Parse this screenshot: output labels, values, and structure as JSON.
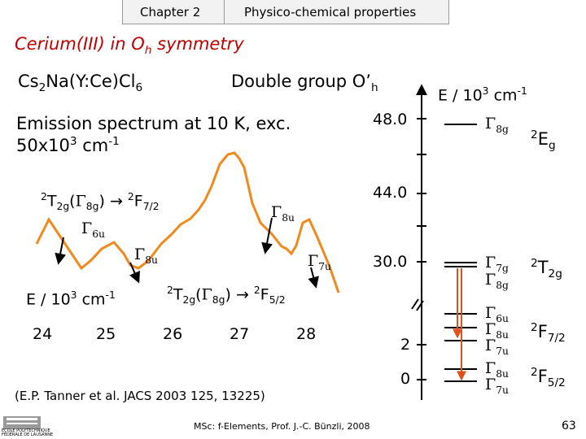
{
  "header": {
    "chapter": "Chapter 2",
    "topic": "Physico-chemical properties"
  },
  "title": {
    "prefix": "Cerium(III) in O",
    "sub": "h",
    "suffix": " symmetry"
  },
  "compound": {
    "a": "Cs",
    "a_sub": "2",
    "b": "Na(Y:Ce)Cl",
    "b_sub": "6"
  },
  "double_group": "Double group O’",
  "double_group_sub": "h",
  "emission_line1": "Emission spectrum at 10 K, exc.",
  "emission_line2_a": "50x10",
  "emission_line2_sup": "3",
  "emission_line2_b": " cm",
  "emission_line2_sup2": "-1",
  "spectrum": {
    "line_color": "#f08a1e",
    "transition_upper": {
      "t": "T",
      "t_sub": "2g",
      "gamma": "Γ",
      "gamma_sub": "8g",
      "arrow": "→",
      "f": "F",
      "f_sub": "7/2",
      "sup2": "2"
    },
    "transition_lower": {
      "t": "T",
      "t_sub": "2g",
      "gamma": "Γ",
      "gamma_sub": "8g",
      "arrow": "→",
      "f": "F",
      "f_sub": "5/2",
      "sup2": "2"
    },
    "peak_labels": [
      {
        "gamma": "Γ",
        "sub": "6u"
      },
      {
        "gamma": "Γ",
        "sub": "8u"
      },
      {
        "gamma": "Γ",
        "sub": "8u"
      },
      {
        "gamma": "Γ",
        "sub": "7u"
      }
    ],
    "x_axis_label": "E / 10",
    "x_axis_sup": "3",
    "x_axis_unit": " cm",
    "x_axis_unit_sup": "-1",
    "x_ticks": [
      "24",
      "25",
      "26",
      "27",
      "28"
    ]
  },
  "energy_diagram": {
    "axis_label": "E / 10",
    "axis_sup": "3",
    "axis_unit": " cm",
    "axis_unit_sup": "-1",
    "ticks": [
      "48.0",
      "44.0",
      "30.0",
      "2",
      "0"
    ],
    "arrow_color": "#e0501c",
    "levels": [
      {
        "gamma": "Γ",
        "sub": "8g"
      },
      {
        "gamma": "Γ",
        "sub": "7g"
      },
      {
        "gamma": "Γ",
        "sub": "8g"
      },
      {
        "gamma": "Γ",
        "sub": "6u"
      },
      {
        "gamma": "Γ",
        "sub": "8u"
      },
      {
        "gamma": "Γ",
        "sub": "7u"
      },
      {
        "gamma": "Γ",
        "sub": "8u"
      },
      {
        "gamma": "Γ",
        "sub": "7u"
      }
    ],
    "terms": [
      {
        "sup": "2",
        "main": "E",
        "sub": "g"
      },
      {
        "sup": "2",
        "main": "T",
        "sub": "2g"
      },
      {
        "sup": "2",
        "main": "F",
        "sub": "7/2"
      },
      {
        "sup": "2",
        "main": "F",
        "sub": "5/2"
      }
    ]
  },
  "citation": "(E.P. Tanner et al. JACS 2003 125, 13225)",
  "footer": {
    "course": "MSc: f-Elements,  Prof. J.-C. Bünzli, 2008",
    "page": "63",
    "logo_line1": "ÉCOLE POLYTECHNIQUE",
    "logo_line2": "FÉDÉRALE DE LAUSANNE"
  }
}
